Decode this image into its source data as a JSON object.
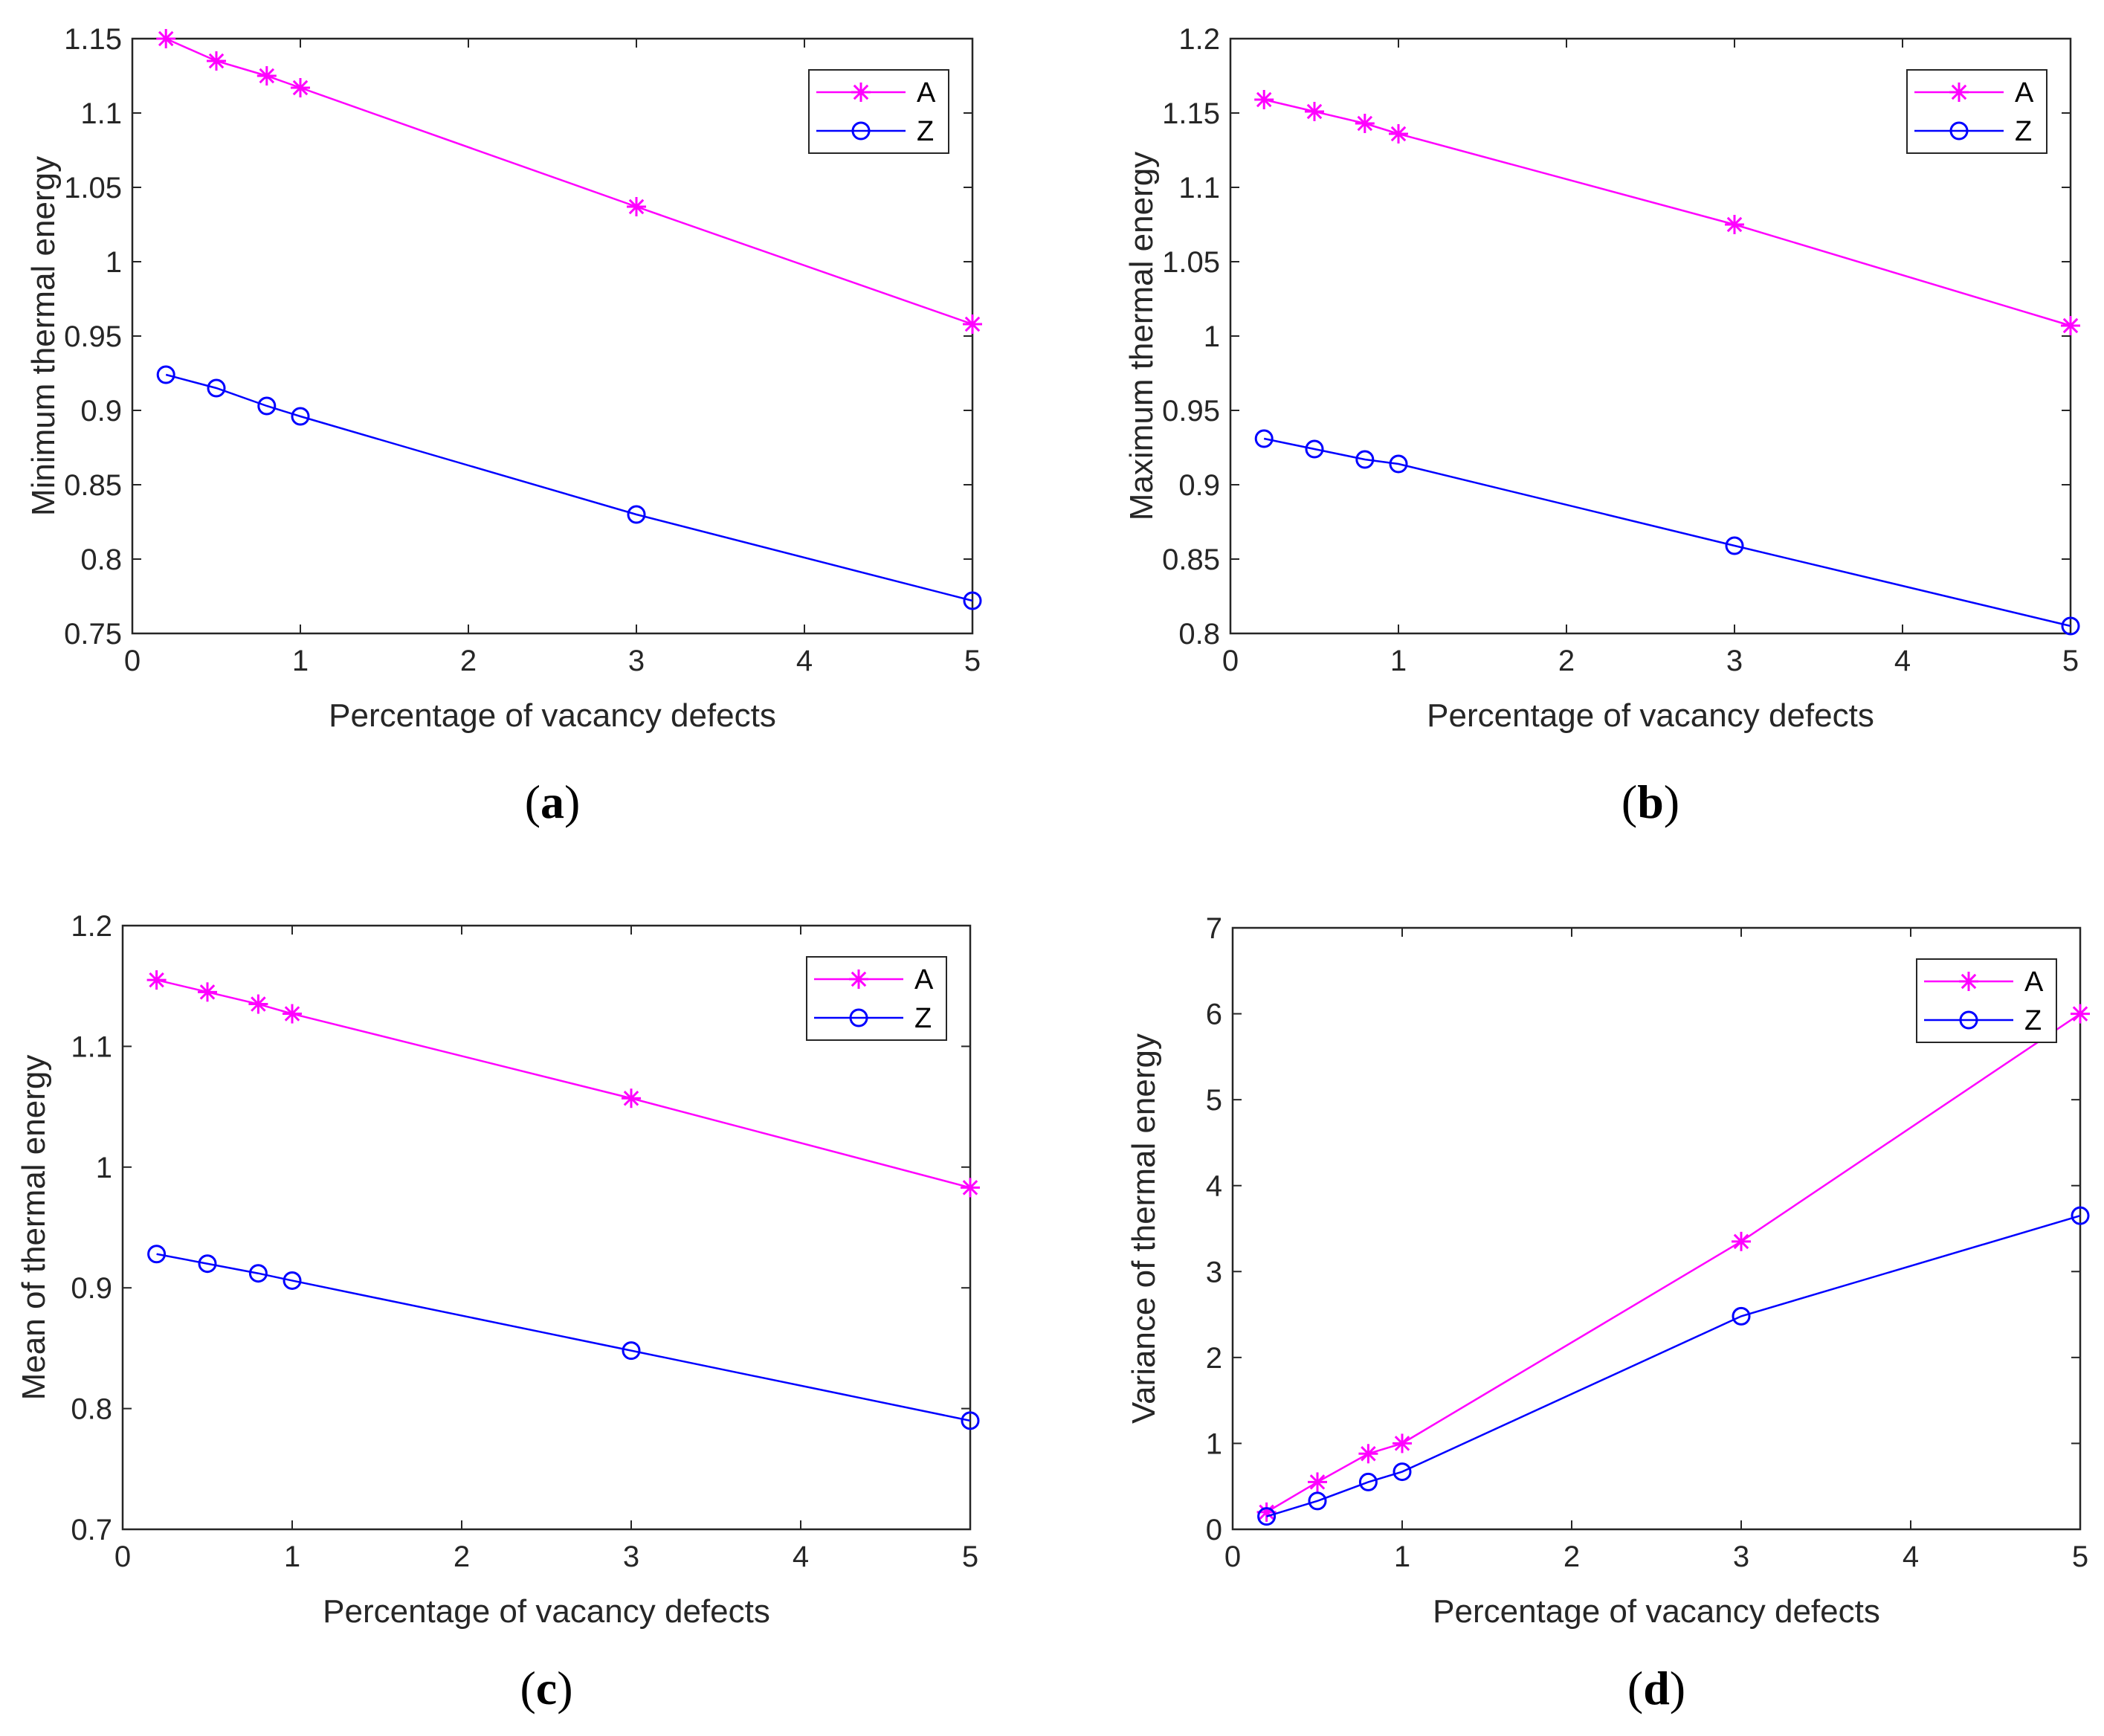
{
  "chart_data": [
    {
      "type": "line",
      "panel": "a",
      "caption": "a",
      "xlabel": "Percentage of vacancy defects",
      "ylabel": "Minimum thermal energy",
      "xlim": [
        0,
        5
      ],
      "ylim": [
        0.75,
        1.15
      ],
      "xticks": [
        0,
        1,
        2,
        3,
        4,
        5
      ],
      "yticks": [
        0.75,
        0.8,
        0.85,
        0.9,
        0.95,
        1,
        1.05,
        1.1,
        1.15
      ],
      "ytick_labels": [
        "0.75",
        "0.8",
        "0.85",
        "0.9",
        "0.95",
        "1",
        "1.05",
        "1.1",
        "1.15"
      ],
      "legend_position": "top-right",
      "x": [
        0.2,
        0.5,
        0.8,
        1,
        3,
        5
      ],
      "series": [
        {
          "name": "A",
          "marker": "star",
          "color": "#ff00ff",
          "values": [
            1.15,
            1.135,
            1.125,
            1.117,
            1.037,
            0.958
          ]
        },
        {
          "name": "Z",
          "marker": "circle",
          "color": "#0000ff",
          "values": [
            0.924,
            0.915,
            0.903,
            0.896,
            0.83,
            0.772
          ]
        }
      ]
    },
    {
      "type": "line",
      "panel": "b",
      "caption": "b",
      "xlabel": "Percentage of vacancy defects",
      "ylabel": "Maximum thermal energy",
      "xlim": [
        0,
        5
      ],
      "ylim": [
        0.8,
        1.2
      ],
      "xticks": [
        0,
        1,
        2,
        3,
        4,
        5
      ],
      "yticks": [
        0.8,
        0.85,
        0.9,
        0.95,
        1,
        1.05,
        1.1,
        1.15,
        1.2
      ],
      "ytick_labels": [
        "0.8",
        "0.85",
        "0.9",
        "0.95",
        "1",
        "1.05",
        "1.1",
        "1.15",
        "1.2"
      ],
      "legend_position": "top-right",
      "x": [
        0.2,
        0.5,
        0.8,
        1,
        3,
        5
      ],
      "series": [
        {
          "name": "A",
          "marker": "star",
          "color": "#ff00ff",
          "values": [
            1.159,
            1.151,
            1.143,
            1.136,
            1.075,
            1.007
          ]
        },
        {
          "name": "Z",
          "marker": "circle",
          "color": "#0000ff",
          "values": [
            0.931,
            0.924,
            0.917,
            0.914,
            0.859,
            0.805
          ]
        }
      ]
    },
    {
      "type": "line",
      "panel": "c",
      "caption": "c",
      "xlabel": "Percentage of vacancy defects",
      "ylabel": "Mean of thermal energy",
      "xlim": [
        0,
        5
      ],
      "ylim": [
        0.7,
        1.2
      ],
      "xticks": [
        0,
        1,
        2,
        3,
        4,
        5
      ],
      "yticks": [
        0.7,
        0.8,
        0.9,
        1,
        1.1,
        1.2
      ],
      "ytick_labels": [
        "0.7",
        "0.8",
        "0.9",
        "1",
        "1.1",
        "1.2"
      ],
      "legend_position": "top-right",
      "x": [
        0.2,
        0.5,
        0.8,
        1,
        3,
        5
      ],
      "series": [
        {
          "name": "A",
          "marker": "star",
          "color": "#ff00ff",
          "values": [
            1.155,
            1.145,
            1.135,
            1.127,
            1.057,
            0.983
          ]
        },
        {
          "name": "Z",
          "marker": "circle",
          "color": "#0000ff",
          "values": [
            0.928,
            0.92,
            0.912,
            0.906,
            0.848,
            0.79
          ]
        }
      ]
    },
    {
      "type": "line",
      "panel": "d",
      "caption": "d",
      "xlabel": "Percentage of vacancy defects",
      "ylabel": "Variance of thermal energy",
      "xlim": [
        0,
        5
      ],
      "ylim": [
        0,
        7
      ],
      "xticks": [
        0,
        1,
        2,
        3,
        4,
        5
      ],
      "yticks": [
        0,
        1,
        2,
        3,
        4,
        5,
        6,
        7
      ],
      "ytick_labels": [
        "0",
        "1",
        "2",
        "3",
        "4",
        "5",
        "6",
        "7"
      ],
      "legend_position": "top-right",
      "x": [
        0.2,
        0.5,
        0.8,
        1,
        3,
        5
      ],
      "series": [
        {
          "name": "A",
          "marker": "star",
          "color": "#ff00ff",
          "values": [
            0.2,
            0.55,
            0.88,
            1.0,
            3.35,
            6.0
          ]
        },
        {
          "name": "Z",
          "marker": "circle",
          "color": "#0000ff",
          "values": [
            0.15,
            0.33,
            0.55,
            0.67,
            2.48,
            3.65
          ]
        }
      ]
    }
  ]
}
